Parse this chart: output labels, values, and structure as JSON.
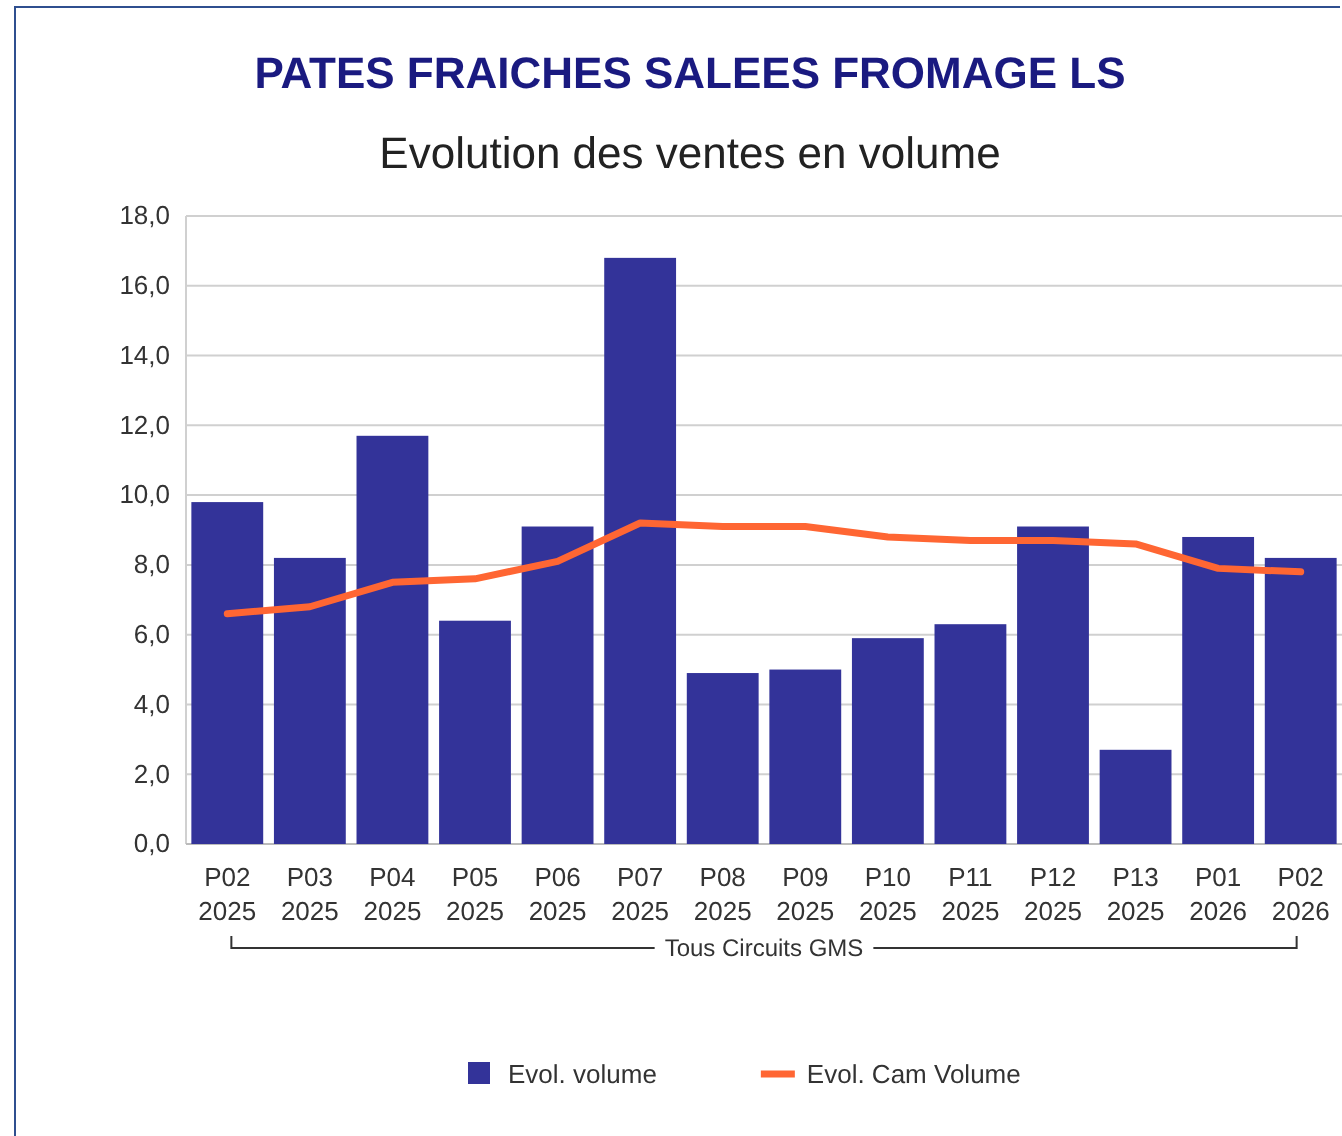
{
  "chart_data": {
    "type": "bar",
    "title": "PATES FRAICHES SALEES FROMAGE LS",
    "subtitle": "Evolution des ventes en volume",
    "categories": [
      "P02 2025",
      "P03 2025",
      "P04 2025",
      "P05 2025",
      "P06 2025",
      "P07 2025",
      "P08 2025",
      "P09 2025",
      "P10 2025",
      "P11 2025",
      "P12 2025",
      "P13 2025",
      "P01 2026",
      "P02 2026"
    ],
    "series": [
      {
        "name": "Evol. volume",
        "color": "#333399",
        "values": [
          9.8,
          8.2,
          11.7,
          6.4,
          9.1,
          16.8,
          4.9,
          5.0,
          5.9,
          6.3,
          9.1,
          2.7,
          8.8,
          8.2
        ]
      },
      {
        "name": "Evol. Cam Volume",
        "type": "line",
        "color": "#ff6633",
        "values": [
          6.6,
          6.8,
          7.5,
          7.6,
          8.1,
          9.2,
          9.1,
          9.1,
          8.8,
          8.7,
          8.7,
          8.6,
          7.9,
          7.8
        ]
      }
    ],
    "ylim": [
      0,
      18
    ],
    "yticks": [
      {
        "value": 0,
        "label": "0,0"
      },
      {
        "value": 2,
        "label": "2,0"
      },
      {
        "value": 4,
        "label": "4,0"
      },
      {
        "value": 6,
        "label": "6,0"
      },
      {
        "value": 8,
        "label": "8,0"
      },
      {
        "value": 10,
        "label": "10,0"
      },
      {
        "value": 12,
        "label": "12,0"
      },
      {
        "value": 14,
        "label": "14,0"
      },
      {
        "value": 16,
        "label": "16,0"
      },
      {
        "value": 18,
        "label": "18,0"
      }
    ],
    "grid": "y",
    "legend": "bottom",
    "marker": "none",
    "line_style": "solid",
    "annotations": [
      "Tous Circuits GMS"
    ]
  }
}
